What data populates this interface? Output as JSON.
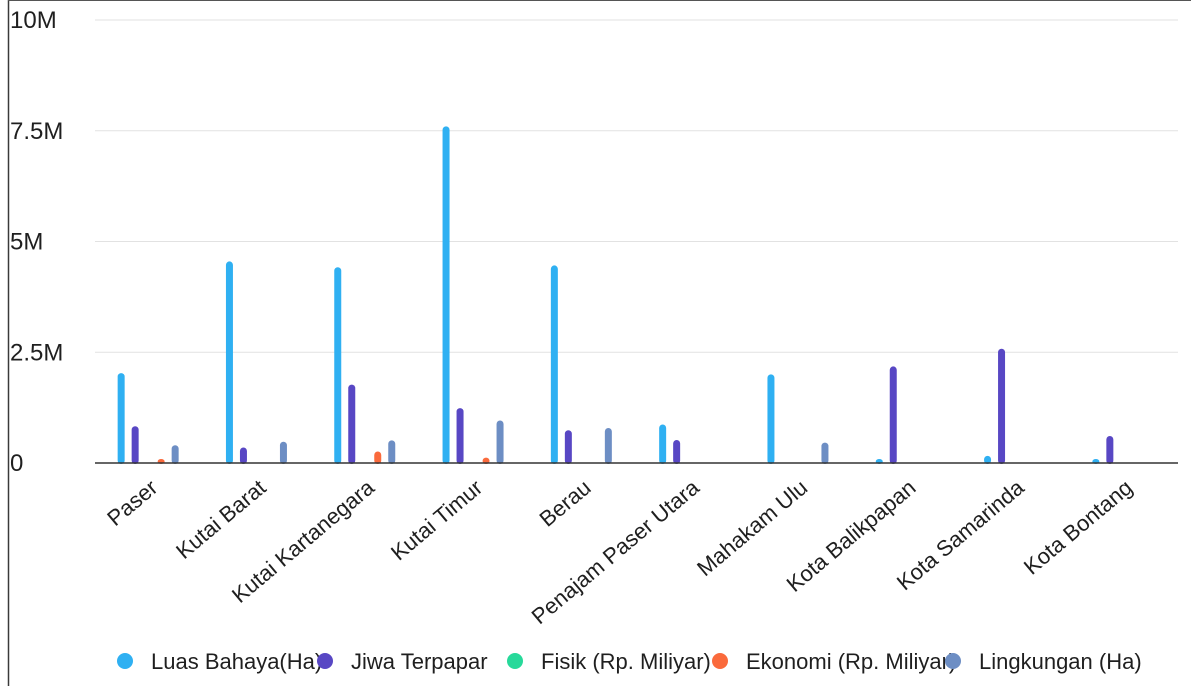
{
  "chart_data": {
    "type": "bar",
    "categories": [
      "Paser",
      "Kutai Barat",
      "Kutai Kartanegara",
      "Kutai Timur",
      "Berau",
      "Penajam Paser Utara",
      "Mahakam Ulu",
      "Kota Balikpapan",
      "Kota Samarinda",
      "Kota Bontang"
    ],
    "series": [
      {
        "name": "Luas Bahaya(Ha)",
        "color": "#2fb0f2",
        "values": [
          2030000,
          4550000,
          4420000,
          7600000,
          4460000,
          870000,
          2000000,
          60000,
          160000,
          60000
        ]
      },
      {
        "name": "Jiwa Terpapar",
        "color": "#5847c4",
        "values": [
          830000,
          350000,
          1770000,
          1240000,
          740000,
          520000,
          0,
          2180000,
          2580000,
          610000
        ]
      },
      {
        "name": "Fisik (Rp. Miliyar)",
        "color": "#27d99a",
        "values": [
          0,
          0,
          0,
          0,
          0,
          0,
          0,
          0,
          0,
          0
        ]
      },
      {
        "name": "Ekonomi (Rp. Miliyar)",
        "color": "#fa6a3c",
        "values": [
          20000,
          0,
          260000,
          120000,
          0,
          0,
          0,
          0,
          0,
          0
        ]
      },
      {
        "name": "Lingkungan (Ha)",
        "color": "#6d8ec4",
        "values": [
          400000,
          480000,
          510000,
          960000,
          790000,
          0,
          460000,
          0,
          0,
          0
        ]
      }
    ],
    "yticks": [
      "0",
      "2.5M",
      "5M",
      "7.5M",
      "10M"
    ],
    "ytick_values": [
      0,
      2500000,
      5000000,
      7500000,
      10000000
    ],
    "ylim": [
      0,
      10000000
    ],
    "grid": true,
    "legend_position": "bottom"
  }
}
